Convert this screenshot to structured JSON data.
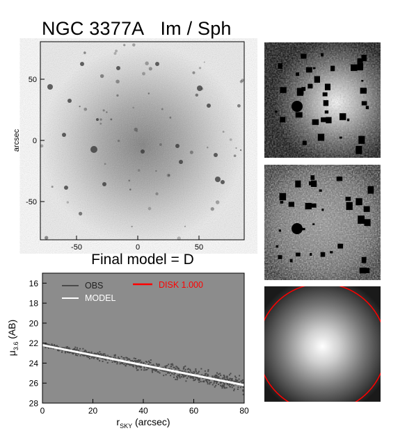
{
  "figure": {
    "galaxy": "NGC 3377A",
    "morph": "Im / Sph",
    "final_model": "Final model = D"
  },
  "image_panel": {
    "ylabel": "arcsec",
    "xticks": [
      "-50",
      "0",
      "50"
    ],
    "yticks": [
      "50",
      "0",
      "-50"
    ]
  },
  "side_panels": [
    {
      "name": "masked-image"
    },
    {
      "name": "residual-image"
    },
    {
      "name": "model-image"
    }
  ],
  "chart_data": {
    "type": "scatter",
    "xlabel_main": "r",
    "xlabel_sub": "SKY",
    "xlabel_unit": " (arcsec)",
    "ylabel_main": "μ",
    "ylabel_sub": "3.6",
    "ylabel_unit": " (AB)",
    "xlim": [
      0,
      80
    ],
    "ylim": [
      28,
      15
    ],
    "xticks": [
      "0",
      "20",
      "40",
      "60",
      "80"
    ],
    "yticks": [
      "16",
      "18",
      "20",
      "22",
      "24",
      "26",
      "28"
    ],
    "legend": {
      "obs": "OBS",
      "model": "MODEL",
      "disk": "DISK  1.000"
    },
    "colors": {
      "background": "#8c8c8c",
      "obs": "#4a4a4a",
      "model": "#ffffff",
      "disk": "#ff0000"
    },
    "model_line": {
      "x": [
        0,
        80
      ],
      "y": [
        22.2,
        26.2
      ]
    },
    "obs_trend": {
      "x": [
        0,
        20,
        40,
        60,
        80
      ],
      "y": [
        22.2,
        23.2,
        24.2,
        25.2,
        26.2
      ],
      "scatter": 0.5
    }
  }
}
